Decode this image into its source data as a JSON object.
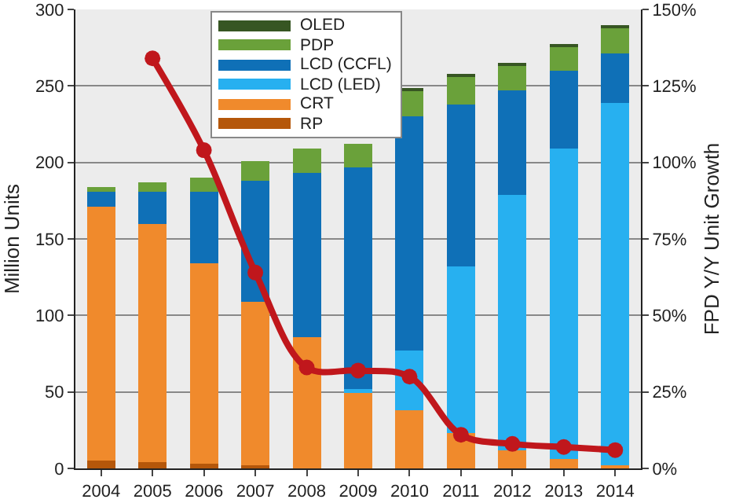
{
  "chart_data": {
    "type": "bar",
    "stacked": true,
    "ylabel": "Million Units",
    "y2label": "FPD Y/Y Unit Growth",
    "categories": [
      "2004",
      "2005",
      "2006",
      "2007",
      "2008",
      "2009",
      "2010",
      "2011",
      "2012",
      "2013",
      "2014"
    ],
    "series": [
      {
        "name": "RP",
        "color": "#b5570a",
        "values": [
          5,
          4,
          3,
          2,
          0,
          0,
          0,
          0,
          0,
          0,
          0
        ]
      },
      {
        "name": "CRT",
        "color": "#f08a2c",
        "values": [
          166,
          156,
          131,
          107,
          86,
          50,
          38,
          23,
          12,
          6,
          2
        ]
      },
      {
        "name": "LCD (LED)",
        "color": "#27b0f0",
        "values": [
          0,
          0,
          0,
          0,
          0,
          2,
          39,
          109,
          167,
          203,
          237
        ]
      },
      {
        "name": "LCD (CCFL)",
        "color": "#0f70b7",
        "values": [
          10,
          21,
          47,
          79,
          107,
          145,
          153,
          106,
          68,
          51,
          32
        ]
      },
      {
        "name": "PDP",
        "color": "#6aa13a",
        "values": [
          3,
          6,
          9,
          13,
          16,
          15,
          17,
          18,
          17,
          16,
          17
        ]
      },
      {
        "name": "OLED",
        "color": "#375623",
        "values": [
          0,
          0,
          0,
          0,
          0,
          0,
          1,
          1,
          1,
          1,
          1
        ]
      },
      {
        "type": "line",
        "axis": "y2",
        "color": "#c0171c",
        "marker": "circle",
        "line_style": "solid",
        "values": [
          null,
          134,
          104,
          64,
          33,
          32,
          30,
          11,
          8,
          7,
          6
        ]
      }
    ],
    "ylim": [
      0,
      300
    ],
    "yticks": [
      0,
      50,
      100,
      150,
      200,
      250,
      300
    ],
    "y2lim": [
      0,
      150
    ],
    "y2ticks": [
      {
        "value": 0,
        "label": "0%"
      },
      {
        "value": 25,
        "label": "25%"
      },
      {
        "value": 50,
        "label": "50%"
      },
      {
        "value": 75,
        "label": "75%"
      },
      {
        "value": 100,
        "label": "100%"
      },
      {
        "value": 125,
        "label": "125%"
      },
      {
        "value": 150,
        "label": "150%"
      }
    ],
    "grid": "y",
    "legend": "top"
  }
}
